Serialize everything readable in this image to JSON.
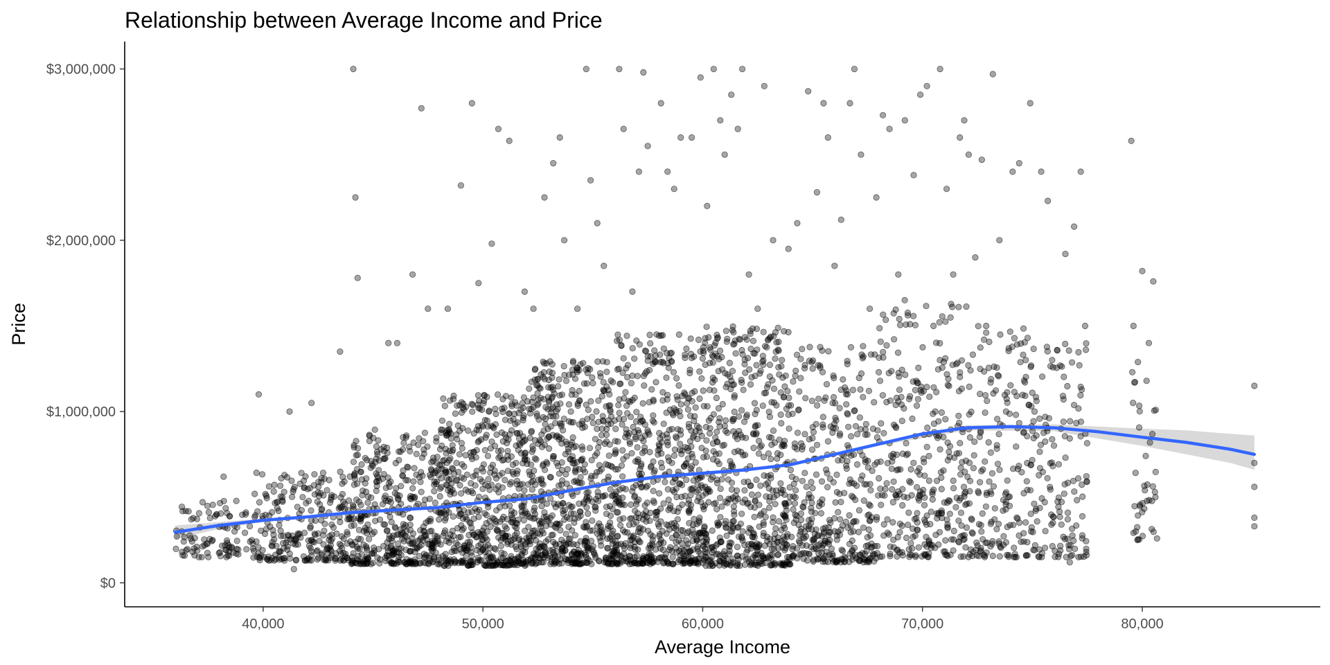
{
  "chart_data": {
    "type": "scatter",
    "title": "Relationship between Average Income and Price",
    "xlabel": "Average Income",
    "ylabel": "Price",
    "xlim": [
      33700,
      88100
    ],
    "ylim": [
      -140000,
      3160000
    ],
    "x_ticks": [
      {
        "value": 40000,
        "label": "40,000"
      },
      {
        "value": 50000,
        "label": "50,000"
      },
      {
        "value": 60000,
        "label": "60,000"
      },
      {
        "value": 70000,
        "label": "70,000"
      },
      {
        "value": 80000,
        "label": "80,000"
      }
    ],
    "y_ticks": [
      {
        "value": 0,
        "label": "$0"
      },
      {
        "value": 1000000,
        "label": "$1,000,000"
      },
      {
        "value": 2000000,
        "label": "$2,000,000"
      },
      {
        "value": 3000000,
        "label": "$3,000,000"
      }
    ],
    "grid": false,
    "legend": "none",
    "point_color": "#000000",
    "point_opacity": 0.35,
    "smooth_color": "#3366FF",
    "ribbon_color": "#BFBFBF",
    "points": [
      [
        36300,
        300000
      ],
      [
        36500,
        190000
      ],
      [
        37700,
        250000
      ],
      [
        38200,
        620000
      ],
      [
        38700,
        300000
      ],
      [
        39200,
        400000
      ],
      [
        39800,
        1100000
      ],
      [
        40200,
        350000
      ],
      [
        40700,
        420000
      ],
      [
        41200,
        1000000
      ],
      [
        41400,
        80000
      ],
      [
        41800,
        500000
      ],
      [
        42200,
        1050000
      ],
      [
        43000,
        600000
      ],
      [
        43500,
        1350000
      ],
      [
        44100,
        3000000
      ],
      [
        44200,
        2250000
      ],
      [
        44300,
        1780000
      ],
      [
        44700,
        400000
      ],
      [
        45200,
        750000
      ],
      [
        45700,
        1400000
      ],
      [
        46100,
        1400000
      ],
      [
        46800,
        1800000
      ],
      [
        47200,
        2770000
      ],
      [
        47500,
        1600000
      ],
      [
        47900,
        700000
      ],
      [
        48400,
        1600000
      ],
      [
        48800,
        700000
      ],
      [
        49000,
        2320000
      ],
      [
        49500,
        2800000
      ],
      [
        49800,
        1750000
      ],
      [
        50100,
        950000
      ],
      [
        50400,
        1980000
      ],
      [
        50700,
        2650000
      ],
      [
        51000,
        600000
      ],
      [
        51200,
        2580000
      ],
      [
        51500,
        700000
      ],
      [
        51900,
        1700000
      ],
      [
        52300,
        1600000
      ],
      [
        52800,
        2250000
      ],
      [
        53200,
        2450000
      ],
      [
        53500,
        2600000
      ],
      [
        53700,
        2000000
      ],
      [
        54000,
        1000000
      ],
      [
        54300,
        1600000
      ],
      [
        54700,
        3000000
      ],
      [
        54900,
        2350000
      ],
      [
        55200,
        2100000
      ],
      [
        55500,
        1850000
      ],
      [
        55800,
        1000000
      ],
      [
        56200,
        3000000
      ],
      [
        56400,
        2650000
      ],
      [
        56800,
        1700000
      ],
      [
        57100,
        2400000
      ],
      [
        57300,
        2980000
      ],
      [
        57500,
        2550000
      ],
      [
        57900,
        1450000
      ],
      [
        58100,
        2800000
      ],
      [
        58400,
        2400000
      ],
      [
        58700,
        2300000
      ],
      [
        59000,
        2600000
      ],
      [
        59200,
        1100000
      ],
      [
        59500,
        2600000
      ],
      [
        59900,
        2950000
      ],
      [
        60200,
        2200000
      ],
      [
        60500,
        3000000
      ],
      [
        60800,
        2700000
      ],
      [
        61000,
        2500000
      ],
      [
        61300,
        2850000
      ],
      [
        61600,
        2650000
      ],
      [
        61800,
        3000000
      ],
      [
        62100,
        1800000
      ],
      [
        62500,
        1600000
      ],
      [
        62800,
        2900000
      ],
      [
        63200,
        2000000
      ],
      [
        63600,
        1300000
      ],
      [
        63900,
        1950000
      ],
      [
        64300,
        2100000
      ],
      [
        64800,
        2870000
      ],
      [
        65200,
        2280000
      ],
      [
        65500,
        2800000
      ],
      [
        65700,
        2600000
      ],
      [
        66000,
        1850000
      ],
      [
        66300,
        2120000
      ],
      [
        66700,
        2800000
      ],
      [
        66900,
        3000000
      ],
      [
        67200,
        2500000
      ],
      [
        67600,
        1600000
      ],
      [
        67900,
        2250000
      ],
      [
        68200,
        2730000
      ],
      [
        68500,
        2650000
      ],
      [
        68900,
        1800000
      ],
      [
        69200,
        2700000
      ],
      [
        69600,
        2380000
      ],
      [
        69900,
        2850000
      ],
      [
        70200,
        2900000
      ],
      [
        70500,
        1500000
      ],
      [
        70800,
        3000000
      ],
      [
        71100,
        2300000
      ],
      [
        71400,
        1800000
      ],
      [
        71700,
        2600000
      ],
      [
        71900,
        2700000
      ],
      [
        72100,
        2500000
      ],
      [
        72400,
        1900000
      ],
      [
        72700,
        2470000
      ],
      [
        72900,
        1500000
      ],
      [
        73200,
        2970000
      ],
      [
        73500,
        2000000
      ],
      [
        73800,
        1000000
      ],
      [
        74100,
        2400000
      ],
      [
        74400,
        2450000
      ],
      [
        74700,
        1300000
      ],
      [
        74900,
        2800000
      ],
      [
        75100,
        1000000
      ],
      [
        75400,
        2400000
      ],
      [
        75700,
        2230000
      ],
      [
        75900,
        1300000
      ],
      [
        76300,
        900000
      ],
      [
        76500,
        1920000
      ],
      [
        76700,
        120000
      ],
      [
        76900,
        2080000
      ],
      [
        77200,
        2400000
      ],
      [
        77400,
        1500000
      ],
      [
        79500,
        2580000
      ],
      [
        79600,
        1500000
      ],
      [
        79700,
        300000
      ],
      [
        80000,
        1820000
      ],
      [
        80300,
        1400000
      ],
      [
        80500,
        1760000
      ],
      [
        80600,
        500000
      ],
      [
        85100,
        1150000
      ],
      [
        85100,
        700000
      ],
      [
        85100,
        560000
      ],
      [
        85100,
        330000
      ],
      [
        85100,
        380000
      ]
    ],
    "dense_bands": [
      [
        36000,
        39500,
        150000,
        480000,
        90
      ],
      [
        39500,
        44000,
        130000,
        650000,
        260
      ],
      [
        44000,
        48000,
        110000,
        900000,
        420
      ],
      [
        48000,
        52000,
        100000,
        1100000,
        560
      ],
      [
        52000,
        56000,
        110000,
        1300000,
        620
      ],
      [
        56000,
        60000,
        110000,
        1450000,
        600
      ],
      [
        60000,
        64000,
        100000,
        1500000,
        560
      ],
      [
        64000,
        68000,
        120000,
        1400000,
        380
      ],
      [
        68000,
        72000,
        150000,
        1650000,
        320
      ],
      [
        72000,
        75000,
        150000,
        1500000,
        200
      ],
      [
        75000,
        77500,
        150000,
        1400000,
        140
      ],
      [
        79500,
        80700,
        250000,
        1300000,
        40
      ]
    ],
    "smooth_line": [
      [
        36000,
        295000
      ],
      [
        38000,
        335000
      ],
      [
        40000,
        365000
      ],
      [
        42000,
        385000
      ],
      [
        44000,
        410000
      ],
      [
        46000,
        425000
      ],
      [
        48000,
        440000
      ],
      [
        50000,
        470000
      ],
      [
        52000,
        490000
      ],
      [
        54000,
        540000
      ],
      [
        56000,
        585000
      ],
      [
        58000,
        620000
      ],
      [
        60000,
        640000
      ],
      [
        62000,
        660000
      ],
      [
        64000,
        690000
      ],
      [
        66000,
        750000
      ],
      [
        68000,
        810000
      ],
      [
        70000,
        870000
      ],
      [
        72000,
        905000
      ],
      [
        74000,
        912000
      ],
      [
        76000,
        905000
      ],
      [
        78000,
        882000
      ],
      [
        80000,
        850000
      ],
      [
        82000,
        820000
      ],
      [
        84000,
        780000
      ],
      [
        85100,
        750000
      ]
    ],
    "ribbon_upper": [
      [
        36000,
        335000
      ],
      [
        38000,
        355000
      ],
      [
        40000,
        375000
      ],
      [
        44000,
        415000
      ],
      [
        50000,
        475000
      ],
      [
        56000,
        592000
      ],
      [
        60000,
        648000
      ],
      [
        64000,
        698000
      ],
      [
        68000,
        820000
      ],
      [
        72000,
        920000
      ],
      [
        76000,
        925000
      ],
      [
        80000,
        900000
      ],
      [
        82000,
        890000
      ],
      [
        84000,
        870000
      ],
      [
        85100,
        860000
      ]
    ],
    "ribbon_lower": [
      [
        36000,
        255000
      ],
      [
        38000,
        315000
      ],
      [
        40000,
        355000
      ],
      [
        44000,
        405000
      ],
      [
        50000,
        465000
      ],
      [
        56000,
        578000
      ],
      [
        60000,
        632000
      ],
      [
        64000,
        682000
      ],
      [
        68000,
        800000
      ],
      [
        72000,
        890000
      ],
      [
        76000,
        885000
      ],
      [
        80000,
        800000
      ],
      [
        82000,
        750000
      ],
      [
        84000,
        700000
      ],
      [
        85100,
        660000
      ]
    ]
  }
}
